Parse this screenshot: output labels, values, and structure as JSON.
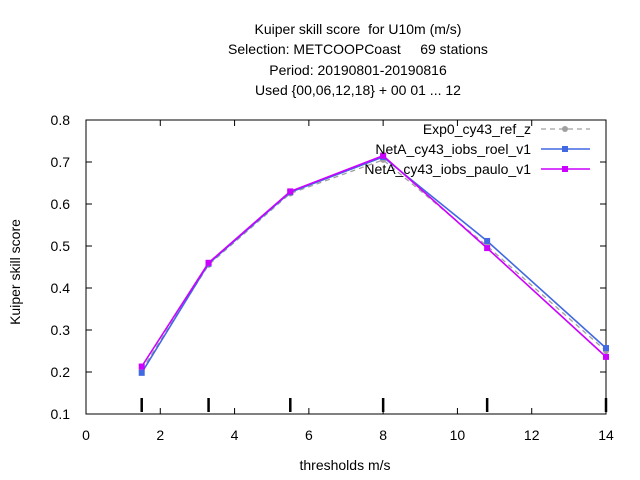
{
  "chart_data": {
    "type": "line",
    "title_lines": [
      "Kuiper skill score  for U10m (m/s)",
      "Selection: METCOOPCoast     69 stations",
      "Period: 20190801-20190816",
      "Used {00,06,12,18} + 00 01 ... 12"
    ],
    "xlabel": "thresholds m/s",
    "ylabel": "Kuiper skill score",
    "xlim": [
      0,
      14
    ],
    "ylim": [
      0.1,
      0.8
    ],
    "x_ticks": [
      "0",
      "2",
      "4",
      "6",
      "8",
      "10",
      "12",
      "14"
    ],
    "y_ticks": [
      "0.1",
      "0.2",
      "0.3",
      "0.4",
      "0.5",
      "0.6",
      "0.7",
      "0.8"
    ],
    "threshold_markers": [
      1.5,
      3.3,
      5.5,
      8.0,
      10.8,
      14.0
    ],
    "legend_position": "top-right",
    "grid": false,
    "series": [
      {
        "name": "Exp0_cy43_ref_z",
        "color": "#a0a0a0",
        "dashed": true,
        "x": [
          1.5,
          3.3,
          5.5,
          8.0,
          10.8,
          14.0
        ],
        "y": [
          0.205,
          0.455,
          0.625,
          0.705,
          0.5,
          0.25
        ]
      },
      {
        "name": "NetA_cy43_iobs_roel_v1",
        "color": "#4169e1",
        "dashed": false,
        "x": [
          1.5,
          3.3,
          5.5,
          8.0,
          10.8,
          14.0
        ],
        "y": [
          0.198,
          0.458,
          0.628,
          0.712,
          0.512,
          0.257
        ]
      },
      {
        "name": "NetA_cy43_iobs_paulo_v1",
        "color": "#cc00ff",
        "dashed": false,
        "x": [
          1.5,
          3.3,
          5.5,
          8.0,
          10.8,
          14.0
        ],
        "y": [
          0.213,
          0.46,
          0.63,
          0.715,
          0.495,
          0.236
        ]
      }
    ]
  }
}
